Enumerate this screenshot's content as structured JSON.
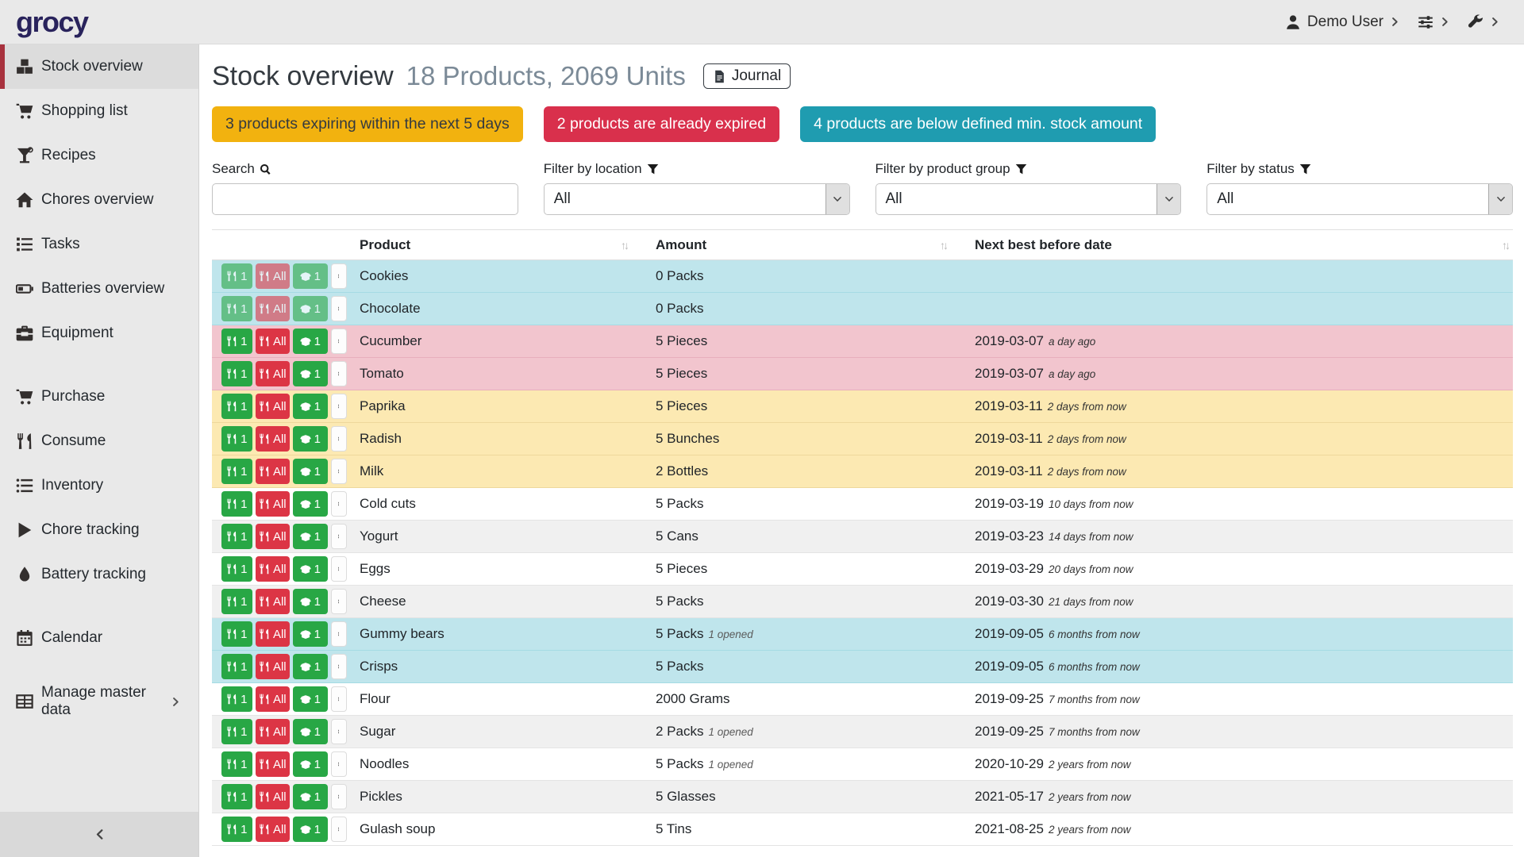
{
  "colors": {
    "brand_navy": "#29235c",
    "accent_red": "#a8323e",
    "alert_warning_bg": "#f2b20f",
    "alert_danger_bg": "#d9304c",
    "alert_info_bg": "#1f9cb0",
    "btn_success": "#28a745",
    "btn_danger": "#dc3545",
    "row_below_min": "#bfe5ec",
    "row_expired": "#f2c5ce",
    "row_expiring": "#fce9b2"
  },
  "topbar": {
    "logo": "grocy",
    "user_label": "Demo User"
  },
  "sidebar": {
    "items": [
      {
        "label": "Stock overview",
        "icon": "boxes-icon",
        "active": true,
        "gap": false,
        "has_submenu": false
      },
      {
        "label": "Shopping list",
        "icon": "cart-icon",
        "active": false,
        "gap": false,
        "has_submenu": false
      },
      {
        "label": "Recipes",
        "icon": "cocktail-icon",
        "active": false,
        "gap": false,
        "has_submenu": false
      },
      {
        "label": "Chores overview",
        "icon": "home-icon",
        "active": false,
        "gap": false,
        "has_submenu": false
      },
      {
        "label": "Tasks",
        "icon": "tasks-icon",
        "active": false,
        "gap": false,
        "has_submenu": false
      },
      {
        "label": "Batteries overview",
        "icon": "battery-icon",
        "active": false,
        "gap": false,
        "has_submenu": false
      },
      {
        "label": "Equipment",
        "icon": "toolbox-icon",
        "active": false,
        "gap": false,
        "has_submenu": false
      },
      {
        "label": "Purchase",
        "icon": "cart-icon",
        "active": false,
        "gap": true,
        "has_submenu": false
      },
      {
        "label": "Consume",
        "icon": "utensils-icon",
        "active": false,
        "gap": false,
        "has_submenu": false
      },
      {
        "label": "Inventory",
        "icon": "list-icon",
        "active": false,
        "gap": false,
        "has_submenu": false
      },
      {
        "label": "Chore tracking",
        "icon": "play-icon",
        "active": false,
        "gap": false,
        "has_submenu": false
      },
      {
        "label": "Battery tracking",
        "icon": "drop-icon",
        "active": false,
        "gap": false,
        "has_submenu": false
      },
      {
        "label": "Calendar",
        "icon": "calendar-icon",
        "active": false,
        "gap": true,
        "has_submenu": false
      },
      {
        "label": "Manage master data",
        "icon": "table-icon",
        "active": false,
        "gap": true,
        "has_submenu": true
      }
    ]
  },
  "header": {
    "title": "Stock overview",
    "subtitle": "18 Products, 2069 Units",
    "journal_label": "Journal"
  },
  "alerts": [
    {
      "label": "3 products expiring within the next 5 days",
      "type": "warning"
    },
    {
      "label": "2 products are already expired",
      "type": "danger"
    },
    {
      "label": "4 products are below defined min. stock amount",
      "type": "info"
    }
  ],
  "filters": {
    "search_label": "Search",
    "location_label": "Filter by location",
    "product_group_label": "Filter by product group",
    "status_label": "Filter by status",
    "search_value": "",
    "location_value": "All",
    "product_group_value": "All",
    "status_value": "All"
  },
  "table": {
    "columns": {
      "product": "Product",
      "amount": "Amount",
      "date": "Next best before date"
    },
    "row_buttons": {
      "consume_one": "1",
      "consume_all": "All",
      "open_one": "1"
    },
    "rows": [
      {
        "product": "Cookies",
        "amount": "0 Packs",
        "opened": "",
        "date": "",
        "relative": "",
        "status": "below-min",
        "disabled": true
      },
      {
        "product": "Chocolate",
        "amount": "0 Packs",
        "opened": "",
        "date": "",
        "relative": "",
        "status": "below-min",
        "disabled": true
      },
      {
        "product": "Cucumber",
        "amount": "5 Pieces",
        "opened": "",
        "date": "2019-03-07",
        "relative": "a day ago",
        "status": "expired",
        "disabled": false
      },
      {
        "product": "Tomato",
        "amount": "5 Pieces",
        "opened": "",
        "date": "2019-03-07",
        "relative": "a day ago",
        "status": "expired",
        "disabled": false
      },
      {
        "product": "Paprika",
        "amount": "5 Pieces",
        "opened": "",
        "date": "2019-03-11",
        "relative": "2 days from now",
        "status": "expiring",
        "disabled": false
      },
      {
        "product": "Radish",
        "amount": "5 Bunches",
        "opened": "",
        "date": "2019-03-11",
        "relative": "2 days from now",
        "status": "expiring",
        "disabled": false
      },
      {
        "product": "Milk",
        "amount": "2 Bottles",
        "opened": "",
        "date": "2019-03-11",
        "relative": "2 days from now",
        "status": "expiring",
        "disabled": false
      },
      {
        "product": "Cold cuts",
        "amount": "5 Packs",
        "opened": "",
        "date": "2019-03-19",
        "relative": "10 days from now",
        "status": "",
        "disabled": false
      },
      {
        "product": "Yogurt",
        "amount": "5 Cans",
        "opened": "",
        "date": "2019-03-23",
        "relative": "14 days from now",
        "status": "",
        "disabled": false
      },
      {
        "product": "Eggs",
        "amount": "5 Pieces",
        "opened": "",
        "date": "2019-03-29",
        "relative": "20 days from now",
        "status": "",
        "disabled": false
      },
      {
        "product": "Cheese",
        "amount": "5 Packs",
        "opened": "",
        "date": "2019-03-30",
        "relative": "21 days from now",
        "status": "",
        "disabled": false
      },
      {
        "product": "Gummy bears",
        "amount": "5 Packs",
        "opened": "1 opened",
        "date": "2019-09-05",
        "relative": "6 months from now",
        "status": "below-min",
        "disabled": false
      },
      {
        "product": "Crisps",
        "amount": "5 Packs",
        "opened": "",
        "date": "2019-09-05",
        "relative": "6 months from now",
        "status": "below-min",
        "disabled": false
      },
      {
        "product": "Flour",
        "amount": "2000 Grams",
        "opened": "",
        "date": "2019-09-25",
        "relative": "7 months from now",
        "status": "",
        "disabled": false
      },
      {
        "product": "Sugar",
        "amount": "2 Packs",
        "opened": "1 opened",
        "date": "2019-09-25",
        "relative": "7 months from now",
        "status": "",
        "disabled": false
      },
      {
        "product": "Noodles",
        "amount": "5 Packs",
        "opened": "1 opened",
        "date": "2020-10-29",
        "relative": "2 years from now",
        "status": "",
        "disabled": false
      },
      {
        "product": "Pickles",
        "amount": "5 Glasses",
        "opened": "",
        "date": "2021-05-17",
        "relative": "2 years from now",
        "status": "",
        "disabled": false
      },
      {
        "product": "Gulash soup",
        "amount": "5 Tins",
        "opened": "",
        "date": "2021-08-25",
        "relative": "2 years from now",
        "status": "",
        "disabled": false
      }
    ]
  }
}
